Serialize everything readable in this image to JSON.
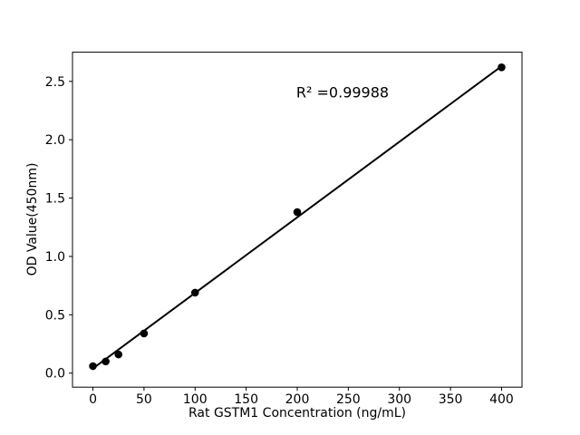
{
  "figure": {
    "background": "#ffffff"
  },
  "chart_data": {
    "type": "scatter",
    "title": "",
    "xlabel": "Rat GSTM1 Concentration (ng/mL)",
    "ylabel": "OD Value(450nm)",
    "annotation": "R² =0.99988",
    "x": [
      0,
      12.5,
      25,
      50,
      100,
      200,
      400
    ],
    "y": [
      0.06,
      0.1,
      0.16,
      0.34,
      0.69,
      1.38,
      2.62
    ],
    "fit_line": {
      "x": [
        0,
        400
      ],
      "y": [
        0.04,
        2.63
      ]
    },
    "xlim": [
      -20,
      420
    ],
    "ylim": [
      -0.12,
      2.75
    ],
    "xticks": {
      "values": [
        0,
        50,
        100,
        150,
        200,
        250,
        300,
        350,
        400
      ],
      "labels": [
        "0",
        "50",
        "100",
        "150",
        "200",
        "250",
        "300",
        "350",
        "400"
      ]
    },
    "yticks": {
      "values": [
        0.0,
        0.5,
        1.0,
        1.5,
        2.0,
        2.5
      ],
      "labels": [
        "0.0",
        "0.5",
        "1.0",
        "1.5",
        "2.0",
        "2.5"
      ]
    },
    "grid": false,
    "legend": "none",
    "marker_color": "#000000",
    "line_color": "#000000",
    "frame_color": "#000000"
  }
}
